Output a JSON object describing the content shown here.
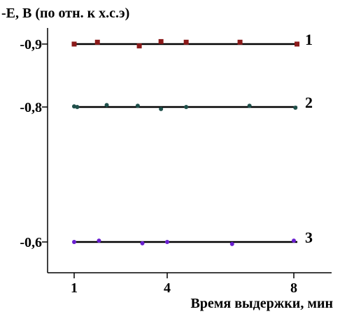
{
  "chart_data": {
    "type": "scatter",
    "title": "-E, B (по отн. к х.с.э)",
    "xlabel": "Время выдержки, мин",
    "ylabel": "",
    "x_ticks": [
      1,
      4,
      8
    ],
    "x_tick_labels": [
      "1",
      "4",
      "8"
    ],
    "y_ticks": [
      -0.9,
      -0.8,
      -0.6
    ],
    "y_tick_labels": [
      "-0,9",
      "-0,8",
      "-0,6"
    ],
    "xlim": [
      0.2,
      10.2
    ],
    "ylim": [
      -0.56,
      -0.94
    ],
    "grid": false,
    "series": [
      {
        "name": "1",
        "color": "#8b1a1a",
        "marker": "square",
        "fit": -0.9,
        "points": [
          [
            1,
            -0.9
          ],
          [
            1.75,
            -0.903
          ],
          [
            3.1,
            -0.897
          ],
          [
            3.8,
            -0.904
          ],
          [
            4.6,
            -0.903
          ],
          [
            6.3,
            -0.903
          ],
          [
            8.1,
            -0.9
          ]
        ]
      },
      {
        "name": "2",
        "color": "#1f4f4a",
        "marker": "circle",
        "fit": -0.8,
        "points": [
          [
            1,
            -0.801
          ],
          [
            1.1,
            -0.8
          ],
          [
            2.05,
            -0.803
          ],
          [
            3.05,
            -0.802
          ],
          [
            3.8,
            -0.797
          ],
          [
            4.6,
            -0.8
          ],
          [
            6.6,
            -0.802
          ],
          [
            8.05,
            -0.799
          ]
        ]
      },
      {
        "name": "3",
        "color": "#6a1fd0",
        "marker": "circle",
        "fit": -0.6,
        "points": [
          [
            1,
            -0.6
          ],
          [
            1.8,
            -0.602
          ],
          [
            3.2,
            -0.598
          ],
          [
            4,
            -0.6
          ],
          [
            6.05,
            -0.597
          ],
          [
            8,
            -0.602
          ]
        ]
      }
    ]
  }
}
